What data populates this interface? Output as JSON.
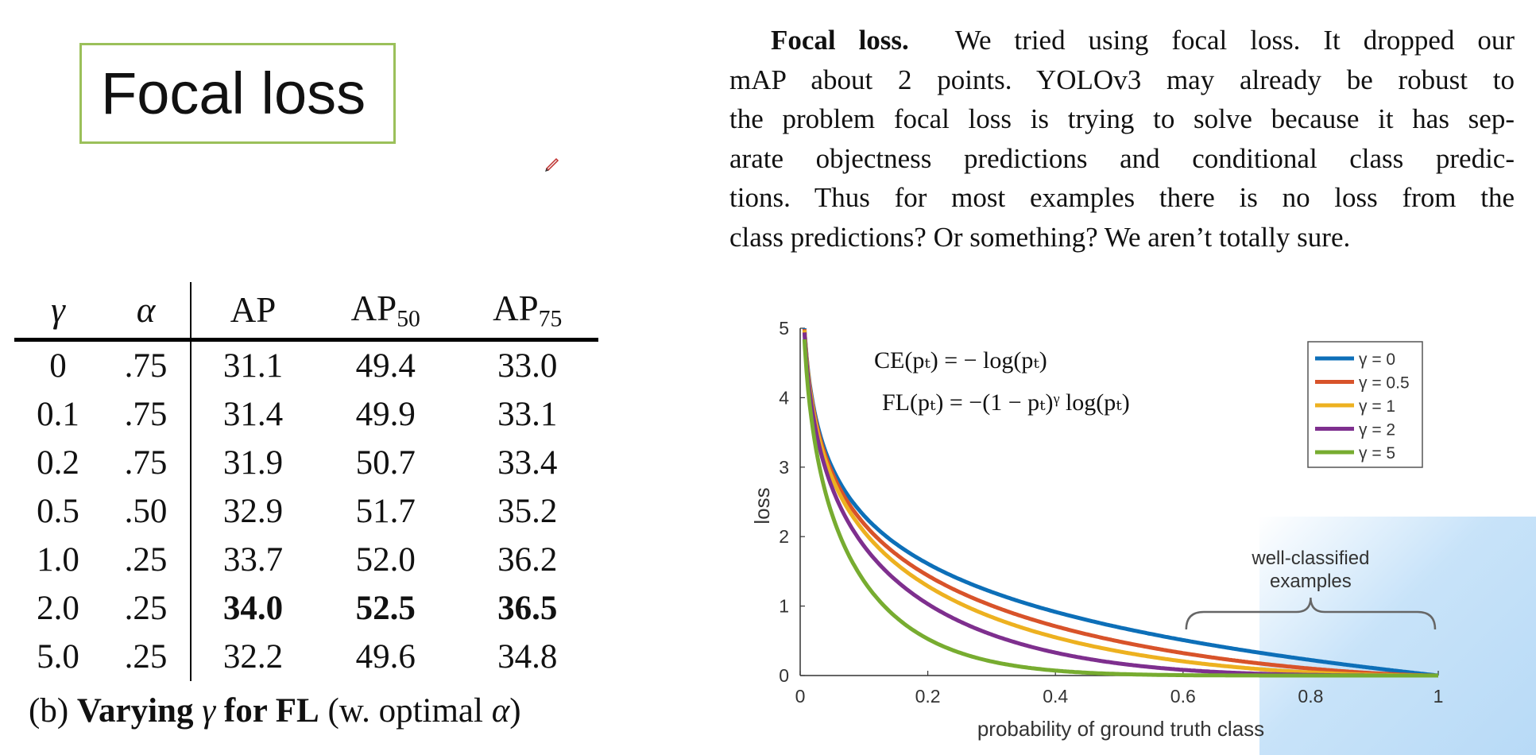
{
  "slide": {
    "title": "Focal loss"
  },
  "table": {
    "headers": {
      "gamma": "γ",
      "alpha": "α",
      "ap": "AP",
      "ap50": {
        "base": "AP",
        "sub": "50"
      },
      "ap75": {
        "base": "AP",
        "sub": "75"
      }
    },
    "rows": [
      {
        "gamma": "0",
        "alpha": ".75",
        "ap": "31.1",
        "ap50": "49.4",
        "ap75": "33.0",
        "bold": false
      },
      {
        "gamma": "0.1",
        "alpha": ".75",
        "ap": "31.4",
        "ap50": "49.9",
        "ap75": "33.1",
        "bold": false
      },
      {
        "gamma": "0.2",
        "alpha": ".75",
        "ap": "31.9",
        "ap50": "50.7",
        "ap75": "33.4",
        "bold": false
      },
      {
        "gamma": "0.5",
        "alpha": ".50",
        "ap": "32.9",
        "ap50": "51.7",
        "ap75": "35.2",
        "bold": false
      },
      {
        "gamma": "1.0",
        "alpha": ".25",
        "ap": "33.7",
        "ap50": "52.0",
        "ap75": "36.2",
        "bold": false
      },
      {
        "gamma": "2.0",
        "alpha": ".25",
        "ap": "34.0",
        "ap50": "52.5",
        "ap75": "36.5",
        "bold": true
      },
      {
        "gamma": "5.0",
        "alpha": ".25",
        "ap": "32.2",
        "ap50": "49.6",
        "ap75": "34.8",
        "bold": false
      }
    ],
    "caption": {
      "prefix": "(b) ",
      "bold_part1": "Varying ",
      "gamma": "γ",
      "bold_part2": " for FL",
      "suffix_open": " (w. optimal ",
      "alpha": "α",
      "suffix_close": ")"
    }
  },
  "paragraph": {
    "heading": "Focal loss.",
    "lines": [
      "We tried using focal loss. It dropped our",
      "mAP about 2 points. YOLOv3 may already be robust to",
      "the problem focal loss is trying to solve because it has sep-",
      "arate objectness predictions and conditional class predic-",
      "tions. Thus for most examples there is no loss from the",
      "class predictions? Or something? We aren’t totally sure."
    ]
  },
  "chart_data": {
    "type": "line",
    "xlabel": "probability of ground truth class",
    "ylabel": "loss",
    "xlim": [
      0,
      1
    ],
    "ylim": [
      0,
      5
    ],
    "xticks": [
      "0",
      "0.2",
      "0.4",
      "0.6",
      "0.8",
      "1"
    ],
    "yticks": [
      "0",
      "1",
      "2",
      "3",
      "4",
      "5"
    ],
    "function": "FL(p) = -(1-p)^gamma * log(p)",
    "series": [
      {
        "name": "γ = 0",
        "gamma": 0,
        "color": "#0d6fb8"
      },
      {
        "name": "γ = 0.5",
        "gamma": 0.5,
        "color": "#d8532a"
      },
      {
        "name": "γ = 1",
        "gamma": 1,
        "color": "#edb120"
      },
      {
        "name": "γ = 2",
        "gamma": 2,
        "color": "#7e2f8e"
      },
      {
        "name": "γ = 5",
        "gamma": 5,
        "color": "#77ac30"
      }
    ],
    "formulas": [
      "CE(pₜ) = − log(pₜ)",
      "FL(pₜ) = −(1 − pₜ)ᵞ log(pₜ)"
    ],
    "annotation": {
      "lines": [
        "well-classified",
        "examples"
      ],
      "x_range": [
        0.6,
        1
      ]
    },
    "legend_position": "top-right"
  }
}
